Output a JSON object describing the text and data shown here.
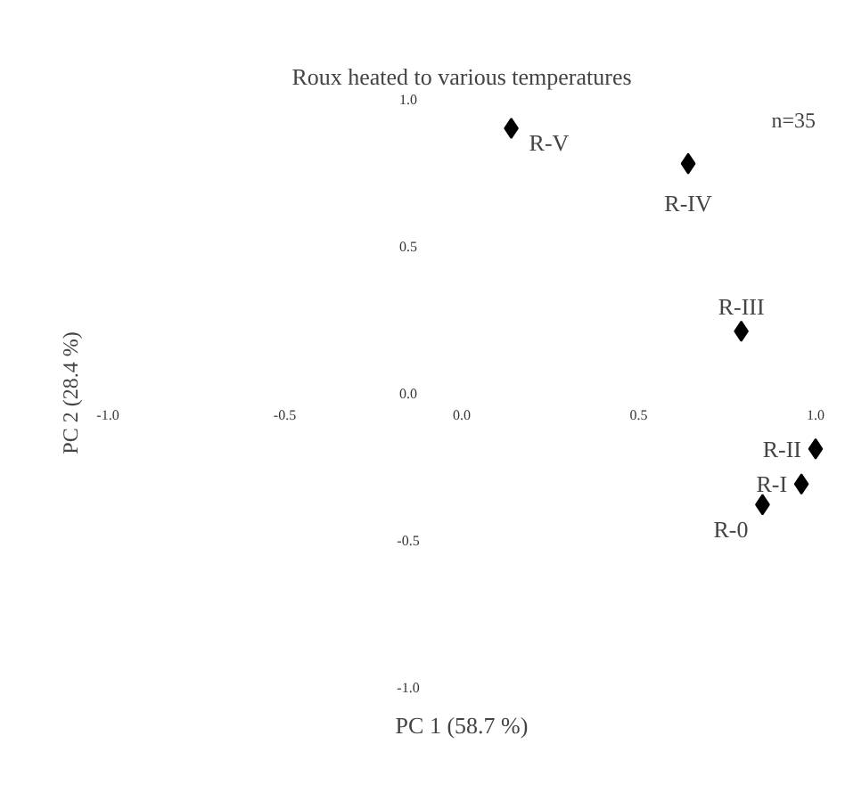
{
  "chart_data": {
    "type": "scatter",
    "title": "Roux heated to various temperatures",
    "xlabel": "PC 1 (58.7 %)",
    "ylabel": "PC 2 (28.4 %)",
    "x": [
      0.14,
      0.64,
      0.79,
      1.0,
      0.96,
      0.85
    ],
    "series": [
      {
        "color": "#000000",
        "values": [
          0.9,
          0.78,
          0.21,
          -0.19,
          -0.31,
          -0.38
        ]
      }
    ],
    "marker": "diamond",
    "grid": false,
    "xlim": [
      -1.0,
      1.0
    ],
    "ylim": [
      -1.0,
      1.0
    ],
    "xticks": [
      {
        "value": -1.0,
        "label": "-1.0"
      },
      {
        "value": -0.5,
        "label": "-0.5"
      },
      {
        "value": 0,
        "label": "0.0"
      },
      {
        "value": 0.5,
        "label": "0.5"
      },
      {
        "value": 1.0,
        "label": "1.0"
      }
    ],
    "yticks": [
      {
        "value": -1.0,
        "label": "-1.0"
      },
      {
        "value": -0.5,
        "label": "-0.5"
      },
      {
        "value": 0,
        "label": "0.0"
      },
      {
        "value": 0.5,
        "label": "0.5"
      },
      {
        "value": 1.0,
        "label": "1.0"
      }
    ],
    "annotations": [
      "n=35",
      {
        "text": "R-V",
        "x": 0.14,
        "y": 0.9
      },
      {
        "text": "R-IV",
        "x": 0.64,
        "y": 0.78
      },
      {
        "text": "R-III",
        "x": 0.79,
        "y": 0.21
      },
      {
        "text": "R-II",
        "x": 1.0,
        "y": -0.19
      },
      {
        "text": "R-I",
        "x": 0.96,
        "y": -0.31
      },
      {
        "text": "R-0",
        "x": 0.85,
        "y": -0.38
      }
    ]
  }
}
